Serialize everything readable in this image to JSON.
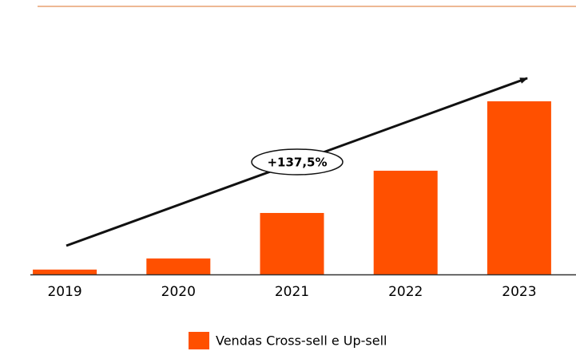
{
  "chart_data": {
    "type": "bar",
    "categories": [
      "2019",
      "2020",
      "2021",
      "2022",
      "2023"
    ],
    "series": [
      {
        "name": "Vendas Cross-sell e Up-sell",
        "color": "#ff5000",
        "values": [
          2.8,
          9.2,
          35.5,
          59.9,
          100
        ]
      }
    ],
    "ylim": [
      0,
      100
    ],
    "annotations": [
      "+137,5%"
    ],
    "legend": "bottom"
  }
}
